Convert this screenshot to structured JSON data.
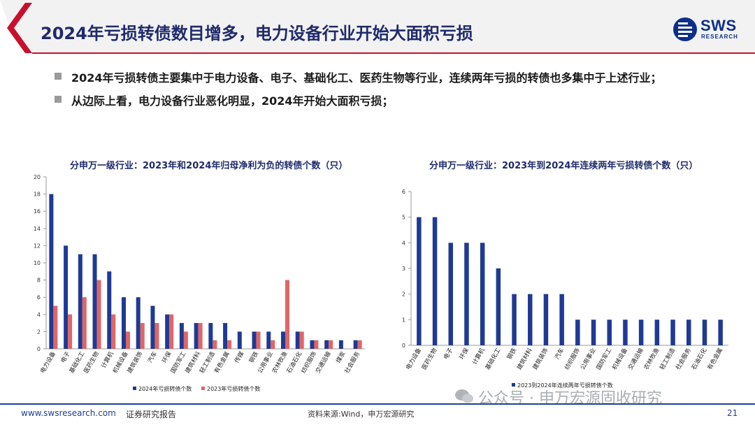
{
  "header": {
    "title": "2024年亏损转债数目增多，电力设备行业开始大面积亏损",
    "logo_main": "SWS",
    "logo_sub": "RESEARCH",
    "accent_color": "#c8102e",
    "brand_color": "#0d2f8a"
  },
  "bullets": [
    "2024年亏损转债主要集中于电力设备、电子、基础化工、医药生物等行业，连续两年亏损的转债也多集中于上述行业；",
    "从边际上看，电力设备行业恶化明显，2024年开始大面积亏损；"
  ],
  "chart_data": [
    {
      "type": "bar",
      "title": "分申万一级行业：2023年和2024年归母净利为负的转债个数（只）",
      "categories": [
        "电力设备",
        "电子",
        "基础化工",
        "医药生物",
        "计算机",
        "机械设备",
        "建筑装饰",
        "汽车",
        "环保",
        "国防军工",
        "建筑材料",
        "轻工制造",
        "有色金属",
        "传媒",
        "钢铁",
        "公用事业",
        "农林牧渔",
        "石油石化",
        "纺织服饰",
        "交通运输",
        "煤炭",
        "社会服务"
      ],
      "series": [
        {
          "name": "2024年亏损转债个数",
          "color": "#1f3a93",
          "values": [
            18,
            12,
            11,
            11,
            9,
            6,
            6,
            5,
            4,
            3,
            3,
            3,
            3,
            2,
            2,
            2,
            2,
            2,
            1,
            1,
            1,
            1
          ]
        },
        {
          "name": "2023年亏损转债个数",
          "color": "#e06666",
          "values": [
            5,
            4,
            6,
            8,
            4,
            2,
            3,
            3,
            4,
            2,
            3,
            1,
            1,
            0,
            2,
            1,
            8,
            2,
            1,
            1,
            0,
            1
          ]
        }
      ],
      "ylim": [
        0,
        20
      ],
      "yticks": [
        0,
        2,
        4,
        6,
        8,
        10,
        12,
        14,
        16,
        18,
        20
      ],
      "grid": false,
      "legend": "bottom"
    },
    {
      "type": "bar",
      "title": "分申万一级行业：2023年到2024年连续两年亏损转债个数（只）",
      "categories": [
        "电力设备",
        "医药生物",
        "电子",
        "环保",
        "计算机",
        "基础化工",
        "钢铁",
        "建筑材料",
        "建筑装饰",
        "汽车",
        "纺织服饰",
        "公用事业",
        "国防军工",
        "机械设备",
        "交通运输",
        "农林牧渔",
        "轻工制造",
        "社会服务",
        "石油石化",
        "有色金属"
      ],
      "series": [
        {
          "name": "2023到2024年连续两年亏损转债个数",
          "color": "#1f3a93",
          "values": [
            5,
            5,
            4,
            4,
            4,
            3,
            2,
            2,
            2,
            2,
            1,
            1,
            1,
            1,
            1,
            1,
            1,
            1,
            1,
            1
          ]
        }
      ],
      "ylim": [
        0,
        6
      ],
      "yticks": [
        0,
        1,
        2,
        3,
        4,
        5,
        6
      ],
      "grid": false,
      "legend": "bottom"
    }
  ],
  "watermark": "公众号 · 申万宏源固收研究",
  "footer": {
    "website": "www.swsresearch.com",
    "report_type": "证券研究报告",
    "source": "资料来源:Wind，申万宏源研究",
    "page": "21"
  }
}
